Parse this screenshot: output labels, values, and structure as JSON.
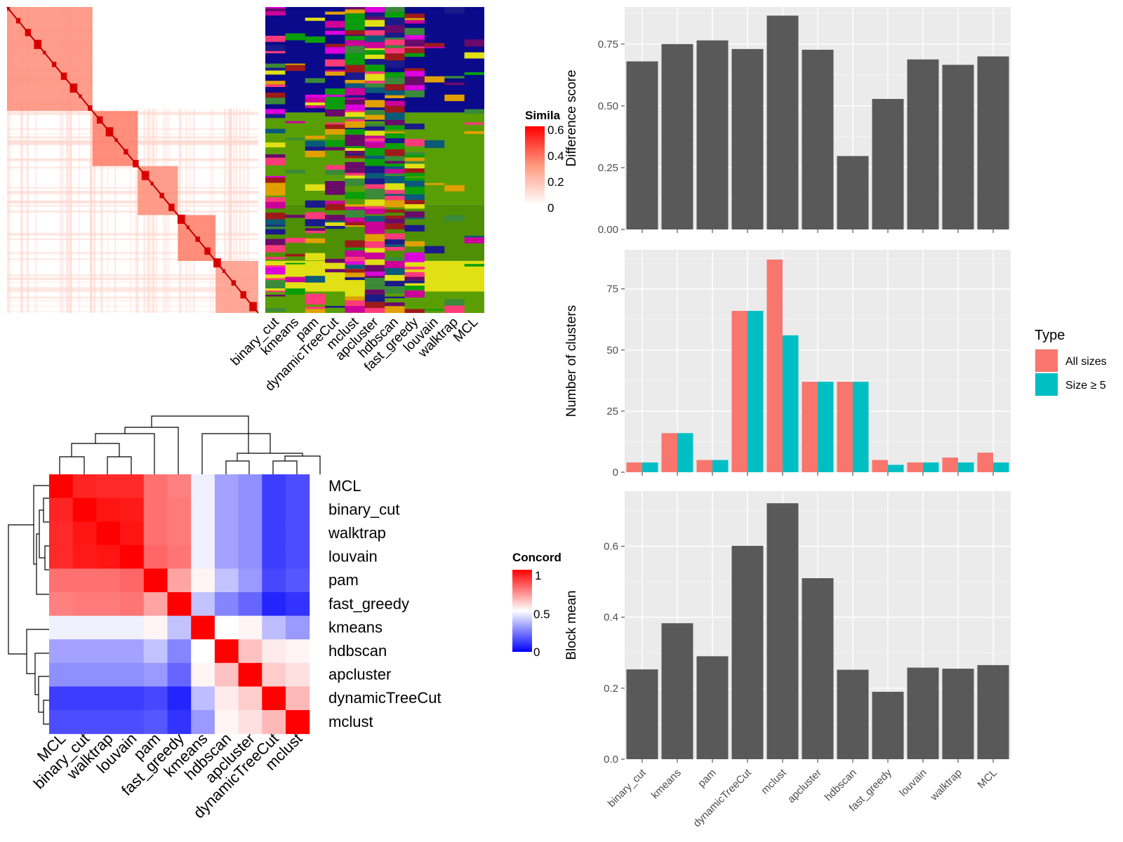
{
  "panel_a": {
    "legend_title": "Simila",
    "legend_ticks": [
      "0.6",
      "0.4",
      "0.2",
      "0"
    ],
    "method_labels": [
      "binary_cut",
      "kmeans",
      "pam",
      "dynamicTreeCut",
      "mclust",
      "apcluster",
      "hdbscan",
      "fast_greedy",
      "louvain",
      "walktrap",
      "MCL"
    ]
  },
  "panel_b": {
    "legend_title": "Concord",
    "legend_ticks": [
      "1",
      "0.5",
      "0"
    ]
  },
  "chart_data": [
    {
      "type": "heatmap",
      "title": "",
      "rows": [
        "MCL",
        "binary_cut",
        "walktrap",
        "louvain",
        "pam",
        "fast_greedy",
        "kmeans",
        "hdbscan",
        "apcluster",
        "dynamicTreeCut",
        "mclust"
      ],
      "cols": [
        "MCL",
        "binary_cut",
        "walktrap",
        "louvain",
        "pam",
        "fast_greedy",
        "kmeans",
        "hdbscan",
        "apcluster",
        "dynamicTreeCut",
        "mclust"
      ],
      "values": [
        [
          1.0,
          0.93,
          0.92,
          0.92,
          0.78,
          0.75,
          0.47,
          0.32,
          0.28,
          0.12,
          0.15
        ],
        [
          0.93,
          1.0,
          0.96,
          0.95,
          0.78,
          0.76,
          0.47,
          0.32,
          0.28,
          0.12,
          0.15
        ],
        [
          0.92,
          0.96,
          1.0,
          0.96,
          0.78,
          0.76,
          0.47,
          0.32,
          0.28,
          0.12,
          0.15
        ],
        [
          0.92,
          0.95,
          0.96,
          1.0,
          0.8,
          0.77,
          0.47,
          0.32,
          0.28,
          0.12,
          0.15
        ],
        [
          0.78,
          0.78,
          0.78,
          0.8,
          1.0,
          0.68,
          0.52,
          0.38,
          0.3,
          0.14,
          0.17
        ],
        [
          0.75,
          0.76,
          0.76,
          0.77,
          0.68,
          1.0,
          0.38,
          0.26,
          0.2,
          0.07,
          0.1
        ],
        [
          0.47,
          0.47,
          0.47,
          0.47,
          0.52,
          0.38,
          1.0,
          0.5,
          0.52,
          0.37,
          0.3
        ],
        [
          0.32,
          0.32,
          0.32,
          0.32,
          0.38,
          0.26,
          0.5,
          1.0,
          0.62,
          0.54,
          0.52
        ],
        [
          0.28,
          0.28,
          0.28,
          0.28,
          0.3,
          0.2,
          0.52,
          0.62,
          1.0,
          0.6,
          0.56
        ],
        [
          0.12,
          0.12,
          0.12,
          0.12,
          0.14,
          0.07,
          0.37,
          0.54,
          0.6,
          1.0,
          0.64
        ],
        [
          0.15,
          0.15,
          0.15,
          0.15,
          0.17,
          0.1,
          0.3,
          0.52,
          0.56,
          0.64,
          1.0
        ]
      ],
      "scale": [
        0,
        1
      ],
      "legend_title": "Concord",
      "colors": {
        "low": "#0000ff",
        "mid": "#ffffff",
        "high": "#ff0000"
      }
    },
    {
      "type": "bar",
      "ylabel": "Difference score",
      "xlabel": "",
      "categories": [
        "binary_cut",
        "kmeans",
        "pam",
        "dynamicTreeCut",
        "mclust",
        "apcluster",
        "hdbscan",
        "fast_greedy",
        "louvain",
        "walktrap",
        "MCL"
      ],
      "values": [
        0.68,
        0.75,
        0.765,
        0.73,
        0.865,
        0.727,
        0.297,
        0.528,
        0.688,
        0.666,
        0.7
      ],
      "ylim": [
        0,
        0.9
      ],
      "yticks": [
        "0.00",
        "0.25",
        "0.50",
        "0.75"
      ],
      "grid": true,
      "color": "#595959"
    },
    {
      "type": "bar",
      "ylabel": "Number of clusters",
      "xlabel": "",
      "categories": [
        "binary_cut",
        "kmeans",
        "pam",
        "dynamicTreeCut",
        "mclust",
        "apcluster",
        "hdbscan",
        "fast_greedy",
        "louvain",
        "walktrap",
        "MCL"
      ],
      "series": [
        {
          "name": "All sizes",
          "values": [
            4,
            16,
            5,
            66,
            87,
            37,
            37,
            5,
            4,
            6,
            8
          ],
          "color": "#f8766d"
        },
        {
          "name": "Size ≥ 5",
          "values": [
            4,
            16,
            5,
            66,
            56,
            37,
            37,
            3,
            4,
            4,
            4
          ],
          "color": "#00bfc4"
        }
      ],
      "ylim": [
        0,
        91
      ],
      "yticks": [
        "0",
        "25",
        "50",
        "75"
      ],
      "legend_title": "Type",
      "legend_position": "right",
      "grid": true
    },
    {
      "type": "bar",
      "ylabel": "Block mean",
      "xlabel": "",
      "categories": [
        "binary_cut",
        "kmeans",
        "pam",
        "dynamicTreeCut",
        "mclust",
        "apcluster",
        "hdbscan",
        "fast_greedy",
        "louvain",
        "walktrap",
        "MCL"
      ],
      "values": [
        0.253,
        0.383,
        0.29,
        0.601,
        0.721,
        0.51,
        0.252,
        0.19,
        0.258,
        0.255,
        0.265
      ],
      "ylim": [
        0,
        0.755
      ],
      "yticks": [
        "0.0",
        "0.2",
        "0.4",
        "0.6"
      ],
      "grid": true,
      "color": "#595959"
    }
  ]
}
